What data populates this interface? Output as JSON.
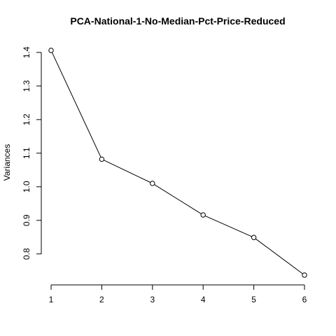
{
  "chart_data": {
    "type": "line",
    "title": "PCA-National-1-No-Median-Pct-Price-Reduced",
    "xlabel": "",
    "ylabel": "Variances",
    "x": [
      1,
      2,
      3,
      4,
      5,
      6
    ],
    "series": [
      {
        "values": [
          1.406,
          1.082,
          1.01,
          0.916,
          0.849,
          0.737
        ]
      }
    ],
    "xticks": [
      "1",
      "2",
      "3",
      "4",
      "5",
      "6"
    ],
    "yticks": [
      "0.8",
      "0.9",
      "1.0",
      "1.1",
      "1.2",
      "1.3",
      "1.4"
    ],
    "xlim": [
      1,
      6
    ],
    "ylim": [
      0.737,
      1.406
    ],
    "grid": false,
    "line_color": "#000000",
    "marker": "open-circle"
  }
}
